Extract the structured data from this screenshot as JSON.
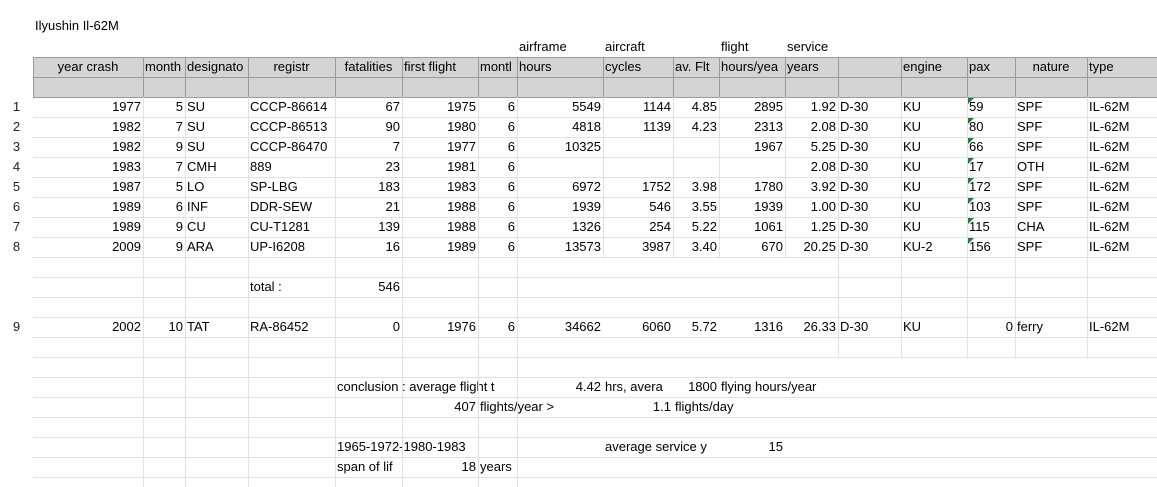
{
  "title": "Ilyushin Il-62M",
  "headers_top": {
    "airframe": "airframe",
    "aircraft": "aircraft",
    "flight": "flight",
    "service": "service"
  },
  "headers": {
    "year_crash": "year crash",
    "month": "month",
    "designator": "designato",
    "registr": "registr",
    "fatalities": "fatalities",
    "first_flight": "first flight",
    "month2": "montl",
    "hours": "hours",
    "cycles": "cycles",
    "av_flt": "av. Flt",
    "hours_year": "hours/yea",
    "years": "years",
    "engine": "engine",
    "pax": "pax",
    "nature": "nature",
    "type": "type"
  },
  "row_numbers": [
    "1",
    "2",
    "3",
    "4",
    "5",
    "6",
    "7",
    "8",
    "9"
  ],
  "rows": [
    {
      "year": "1977",
      "month": "5",
      "des": "SU",
      "reg": "CCCP-86614",
      "fat": "67",
      "ff": "1975",
      "ffm": "6",
      "hours": "5549",
      "cycles": "1144",
      "avflt": "4.85",
      "hy": "2895",
      "svc": "1.92",
      "eng1": "D-30",
      "eng2": "KU",
      "pax": "59",
      "nature": "SPF",
      "type": "IL-62M"
    },
    {
      "year": "1982",
      "month": "7",
      "des": "SU",
      "reg": "CCCP-86513",
      "fat": "90",
      "ff": "1980",
      "ffm": "6",
      "hours": "4818",
      "cycles": "1139",
      "avflt": "4.23",
      "hy": "2313",
      "svc": "2.08",
      "eng1": "D-30",
      "eng2": "KU",
      "pax": "80",
      "nature": "SPF",
      "type": "IL-62M"
    },
    {
      "year": "1982",
      "month": "9",
      "des": "SU",
      "reg": "CCCP-86470",
      "fat": "7",
      "ff": "1977",
      "ffm": "6",
      "hours": "10325",
      "cycles": "",
      "avflt": "",
      "hy": "1967",
      "svc": "5.25",
      "eng1": "D-30",
      "eng2": "KU",
      "pax": "66",
      "nature": "SPF",
      "type": "IL-62M"
    },
    {
      "year": "1983",
      "month": "7",
      "des": "CMH",
      "reg": "889",
      "fat": "23",
      "ff": "1981",
      "ffm": "6",
      "hours": "",
      "cycles": "",
      "avflt": "",
      "hy": "",
      "svc": "2.08",
      "eng1": "D-30",
      "eng2": "KU",
      "pax": "17",
      "nature": "OTH",
      "type": "IL-62M"
    },
    {
      "year": "1987",
      "month": "5",
      "des": "LO",
      "reg": "SP-LBG",
      "fat": "183",
      "ff": "1983",
      "ffm": "6",
      "hours": "6972",
      "cycles": "1752",
      "avflt": "3.98",
      "hy": "1780",
      "svc": "3.92",
      "eng1": "D-30",
      "eng2": "KU",
      "pax": "172",
      "nature": "SPF",
      "type": "IL-62M"
    },
    {
      "year": "1989",
      "month": "6",
      "des": "INF",
      "reg": "DDR-SEW",
      "fat": "21",
      "ff": "1988",
      "ffm": "6",
      "hours": "1939",
      "cycles": "546",
      "avflt": "3.55",
      "hy": "1939",
      "svc": "1.00",
      "eng1": "D-30",
      "eng2": "KU",
      "pax": "103",
      "nature": "SPF",
      "type": "IL-62M"
    },
    {
      "year": "1989",
      "month": "9",
      "des": "CU",
      "reg": "CU-T1281",
      "fat": "139",
      "ff": "1988",
      "ffm": "6",
      "hours": "1326",
      "cycles": "254",
      "avflt": "5.22",
      "hy": "1061",
      "svc": "1.25",
      "eng1": "D-30",
      "eng2": "KU",
      "pax": "115",
      "nature": "CHA",
      "type": "IL-62M"
    },
    {
      "year": "2009",
      "month": "9",
      "des": "ARA",
      "reg": "UP-I6208",
      "fat": "16",
      "ff": "1989",
      "ffm": "6",
      "hours": "13573",
      "cycles": "3987",
      "avflt": "3.40",
      "hy": "670",
      "svc": "20.25",
      "eng1": "D-30",
      "eng2": "KU-2",
      "pax": "156",
      "nature": "SPF",
      "type": "IL-62M"
    }
  ],
  "total": {
    "label": "total :",
    "value": "546"
  },
  "row9": {
    "year": "2002",
    "month": "10",
    "des": "TAT",
    "reg": "RA-86452",
    "fat": "0",
    "ff": "1976",
    "ffm": "6",
    "hours": "34662",
    "cycles": "6060",
    "avflt": "5.72",
    "hy": "1316",
    "svc": "26.33",
    "eng1": "D-30",
    "eng2": "KU",
    "pax": "0",
    "nature": "ferry",
    "type": "IL-62M"
  },
  "conclusion": {
    "line1_label": "conclusion : average flight t",
    "line1_value": "4.42",
    "line1_mid": "hrs, avera",
    "line1_value2": "1800",
    "line1_end": "flying hours/year",
    "line2_value": "407",
    "line2_mid": "flights/year >",
    "line2_value2": "1.1",
    "line2_end": "flights/day"
  },
  "dates_span": "1965-1972-1980-1983",
  "avg_service_label": "average service y",
  "avg_service_value": "15",
  "span_label": "span of lif",
  "span_value": "18",
  "span_unit": "years"
}
